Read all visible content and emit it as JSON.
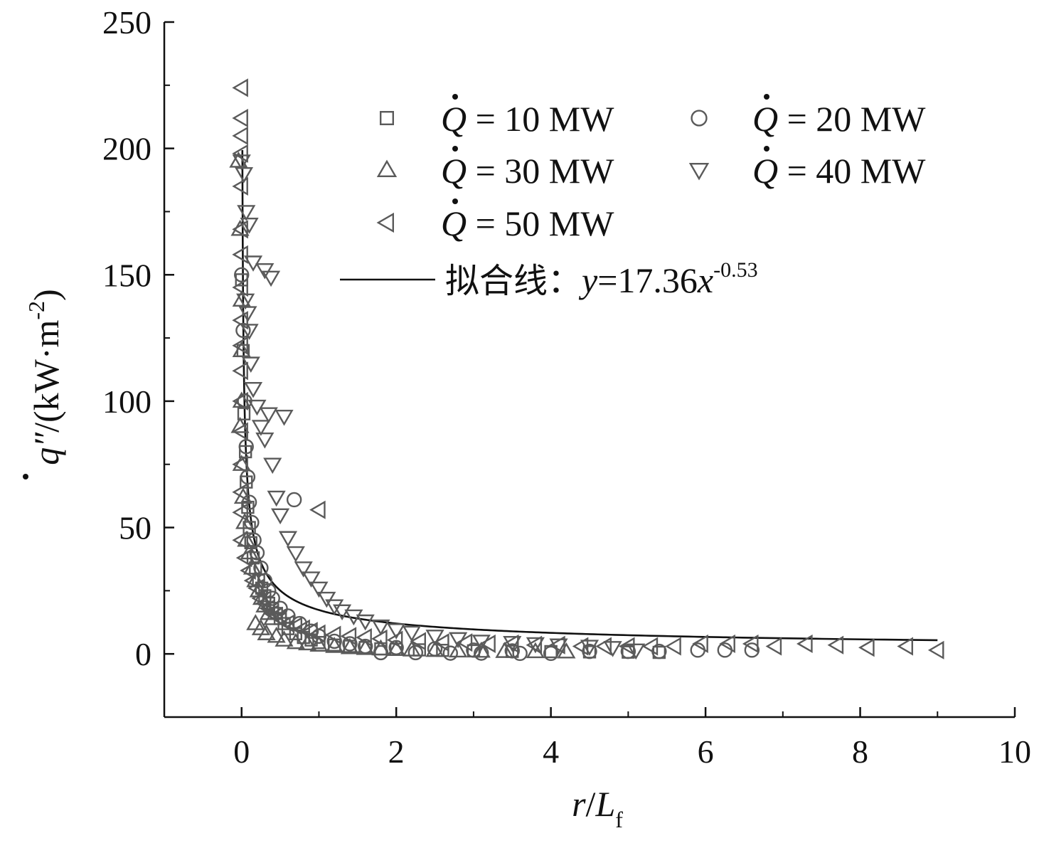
{
  "chart_data": {
    "type": "scatter",
    "xlabel": {
      "italic": "r",
      "slash": "/",
      "italic2": "L",
      "sub": "f"
    },
    "ylabel": {
      "var": "q",
      "prime": "″",
      "rest": "/(kW·m",
      "sup": "-2",
      "close": ")"
    },
    "xlim": [
      -1,
      10
    ],
    "ylim": [
      -25,
      250
    ],
    "xticks": [
      0,
      2,
      4,
      6,
      8,
      10
    ],
    "xtick_labels": [
      "0",
      "2",
      "4",
      "6",
      "8",
      "10"
    ],
    "yticks": [
      0,
      50,
      100,
      150,
      200,
      250
    ],
    "ytick_labels": [
      "0",
      "50",
      "100",
      "150",
      "200",
      "250"
    ],
    "legend_position": "top-right",
    "marker_color": "#5a5a5a",
    "fit_color": "#111111",
    "series": [
      {
        "name": "Q̇ = 10 MW",
        "legend_var": "Q",
        "legend_rest": " = 10 MW",
        "marker": "square",
        "points": [
          [
            0.0,
            148
          ],
          [
            0.02,
            120
          ],
          [
            0.03,
            95
          ],
          [
            0.05,
            80
          ],
          [
            0.06,
            68
          ],
          [
            0.08,
            58
          ],
          [
            0.1,
            50
          ],
          [
            0.12,
            44
          ],
          [
            0.15,
            38
          ],
          [
            0.18,
            34
          ],
          [
            0.22,
            29
          ],
          [
            0.26,
            26
          ],
          [
            0.3,
            23
          ],
          [
            0.35,
            20
          ],
          [
            0.4,
            18
          ],
          [
            0.45,
            16
          ],
          [
            0.5,
            14
          ],
          [
            0.55,
            12
          ],
          [
            0.6,
            10
          ],
          [
            0.7,
            8
          ],
          [
            0.8,
            6.5
          ],
          [
            0.9,
            5.5
          ],
          [
            1.0,
            4.5
          ],
          [
            1.2,
            3.5
          ],
          [
            1.4,
            3
          ],
          [
            1.6,
            2.5
          ],
          [
            1.8,
            2
          ],
          [
            2.0,
            1.8
          ],
          [
            2.3,
            1.6
          ],
          [
            2.6,
            1.4
          ],
          [
            3.0,
            1.2
          ],
          [
            3.5,
            1.0
          ],
          [
            4.0,
            0.9
          ],
          [
            4.5,
            0.8
          ],
          [
            5.0,
            0.7
          ],
          [
            5.4,
            0.6
          ]
        ]
      },
      {
        "name": "Q̇ = 20 MW",
        "legend_var": "Q",
        "legend_rest": " = 20 MW",
        "marker": "circle",
        "points": [
          [
            0.0,
            150
          ],
          [
            0.02,
            128
          ],
          [
            0.04,
            100
          ],
          [
            0.06,
            82
          ],
          [
            0.08,
            70
          ],
          [
            0.1,
            60
          ],
          [
            0.13,
            52
          ],
          [
            0.16,
            45
          ],
          [
            0.2,
            40
          ],
          [
            0.25,
            34
          ],
          [
            0.3,
            29
          ],
          [
            0.35,
            25
          ],
          [
            0.4,
            22
          ],
          [
            0.5,
            18
          ],
          [
            0.6,
            15
          ],
          [
            0.68,
            61
          ],
          [
            0.75,
            12
          ],
          [
            0.9,
            9
          ],
          [
            1.0,
            7
          ],
          [
            1.2,
            5
          ],
          [
            1.4,
            4
          ],
          [
            1.6,
            3
          ],
          [
            1.8,
            0.5
          ],
          [
            2.0,
            2.5
          ],
          [
            2.25,
            0.5
          ],
          [
            2.5,
            2
          ],
          [
            2.7,
            0.3
          ],
          [
            3.0,
            1.5
          ],
          [
            3.1,
            0.3
          ],
          [
            3.5,
            1.2
          ],
          [
            3.6,
            0.2
          ],
          [
            4.0,
            0.2
          ],
          [
            4.5,
            1.0
          ],
          [
            5.0,
            1.0
          ],
          [
            5.4,
            1.0
          ],
          [
            5.9,
            1.5
          ],
          [
            6.25,
            1.5
          ],
          [
            6.6,
            1.5
          ]
        ]
      },
      {
        "name": "Q̇ = 30 MW",
        "legend_var": "Q",
        "legend_rest": " = 30 MW",
        "marker": "triangle-up",
        "points": [
          [
            -0.04,
            195
          ],
          [
            -0.02,
            168
          ],
          [
            0.0,
            140
          ],
          [
            0.0,
            120
          ],
          [
            0.0,
            100
          ],
          [
            -0.02,
            90
          ],
          [
            0.0,
            75
          ],
          [
            0.02,
            62
          ],
          [
            0.04,
            52
          ],
          [
            0.06,
            45
          ],
          [
            0.1,
            40
          ],
          [
            0.14,
            34
          ],
          [
            0.18,
            29
          ],
          [
            0.22,
            25
          ],
          [
            0.26,
            22
          ],
          [
            0.3,
            19
          ],
          [
            0.35,
            16
          ],
          [
            0.4,
            14
          ],
          [
            0.18,
            12
          ],
          [
            0.25,
            10
          ],
          [
            0.32,
            8
          ],
          [
            0.45,
            7
          ],
          [
            0.55,
            5.5
          ],
          [
            0.7,
            4.5
          ],
          [
            0.85,
            4
          ],
          [
            1.0,
            3.5
          ],
          [
            1.2,
            3
          ],
          [
            1.4,
            2.5
          ],
          [
            1.6,
            2.2
          ],
          [
            1.8,
            2.0
          ],
          [
            2.0,
            1.8
          ],
          [
            2.2,
            1.6
          ],
          [
            2.5,
            1.4
          ],
          [
            2.8,
            1.2
          ],
          [
            3.1,
            1.1
          ],
          [
            3.4,
            1.0
          ],
          [
            3.8,
            0.9
          ],
          [
            4.2,
            0.8
          ]
        ]
      },
      {
        "name": "Q̇ = 40 MW",
        "legend_var": "Q",
        "legend_rest": " = 40 MW",
        "marker": "triangle-down",
        "points": [
          [
            0.0,
            195
          ],
          [
            0.03,
            190
          ],
          [
            0.06,
            175
          ],
          [
            0.1,
            170
          ],
          [
            0.15,
            155
          ],
          [
            0.3,
            152
          ],
          [
            0.38,
            149
          ],
          [
            0.05,
            140
          ],
          [
            0.08,
            135
          ],
          [
            0.1,
            128
          ],
          [
            0.12,
            115
          ],
          [
            0.15,
            105
          ],
          [
            0.2,
            98
          ],
          [
            0.35,
            95
          ],
          [
            0.55,
            94
          ],
          [
            0.25,
            90
          ],
          [
            0.3,
            85
          ],
          [
            0.4,
            75
          ],
          [
            0.45,
            62
          ],
          [
            0.5,
            55
          ],
          [
            0.6,
            46
          ],
          [
            0.7,
            40
          ],
          [
            0.8,
            34
          ],
          [
            0.9,
            30
          ],
          [
            1.0,
            26
          ],
          [
            1.1,
            22
          ],
          [
            1.2,
            19
          ],
          [
            1.3,
            17
          ],
          [
            1.45,
            15
          ],
          [
            1.6,
            13
          ],
          [
            1.8,
            11
          ],
          [
            2.0,
            9.5
          ],
          [
            2.2,
            8.5
          ],
          [
            2.5,
            7
          ],
          [
            2.8,
            6
          ],
          [
            3.1,
            5
          ],
          [
            3.5,
            4.5
          ],
          [
            3.8,
            4
          ],
          [
            4.1,
            3.5
          ],
          [
            4.5,
            3
          ],
          [
            4.8,
            2.5
          ],
          [
            5.1,
            1.5
          ]
        ]
      },
      {
        "name": "Q̇ = 50 MW",
        "legend_var": "Q",
        "legend_rest": " = 50 MW",
        "marker": "triangle-left",
        "points": [
          [
            0.0,
            224
          ],
          [
            0.0,
            212
          ],
          [
            0.0,
            205
          ],
          [
            0.0,
            198
          ],
          [
            0.0,
            185
          ],
          [
            0.0,
            168
          ],
          [
            0.0,
            158
          ],
          [
            0.0,
            145
          ],
          [
            0.0,
            132
          ],
          [
            0.0,
            122
          ],
          [
            0.0,
            112
          ],
          [
            0.0,
            100
          ],
          [
            0.0,
            88
          ],
          [
            0.0,
            75
          ],
          [
            0.0,
            64
          ],
          [
            0.0,
            56
          ],
          [
            0.0,
            45
          ],
          [
            0.05,
            38
          ],
          [
            0.1,
            33
          ],
          [
            0.15,
            29
          ],
          [
            0.2,
            26
          ],
          [
            0.25,
            22
          ],
          [
            0.3,
            20
          ],
          [
            0.35,
            18
          ],
          [
            0.4,
            16
          ],
          [
            0.45,
            15
          ],
          [
            1.0,
            57
          ],
          [
            0.5,
            14
          ],
          [
            0.6,
            12
          ],
          [
            0.7,
            11
          ],
          [
            0.8,
            10
          ],
          [
            0.9,
            9
          ],
          [
            1.0,
            8
          ],
          [
            1.2,
            7.5
          ],
          [
            1.4,
            7
          ],
          [
            1.6,
            6.5
          ],
          [
            1.8,
            6
          ],
          [
            2.0,
            5.5
          ],
          [
            2.3,
            5
          ],
          [
            2.6,
            4.5
          ],
          [
            2.9,
            4.5
          ],
          [
            3.2,
            4
          ],
          [
            3.5,
            4
          ],
          [
            3.8,
            3.5
          ],
          [
            4.1,
            3.5
          ],
          [
            4.4,
            3
          ],
          [
            4.7,
            3
          ],
          [
            5.0,
            3
          ],
          [
            5.3,
            3
          ],
          [
            5.6,
            3
          ],
          [
            5.95,
            4
          ],
          [
            6.3,
            4
          ],
          [
            6.6,
            4
          ],
          [
            6.9,
            3
          ],
          [
            7.3,
            4
          ],
          [
            7.7,
            3.5
          ],
          [
            8.1,
            2.5
          ],
          [
            8.6,
            3
          ],
          [
            9.0,
            1.5
          ]
        ]
      }
    ],
    "fit": {
      "name": "拟合线：y=17.36x^-0.53",
      "label_cn": "拟合线：",
      "label_y": "y",
      "label_eq": "=17.36",
      "label_x": "x",
      "label_exp": "-0.53",
      "a": 17.36,
      "b": -0.53,
      "x_range": [
        0.01,
        9.0
      ]
    }
  }
}
